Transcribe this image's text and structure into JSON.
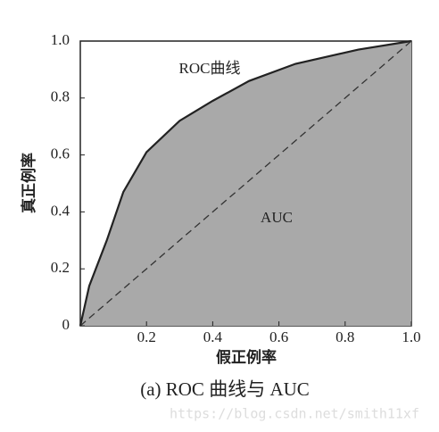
{
  "chart_data": {
    "type": "area",
    "caption": "(a) ROC 曲线与 AUC",
    "xlabel": "假正例率",
    "ylabel": "真正例率",
    "annotations": [
      "ROC曲线",
      "AUC"
    ],
    "watermark": "https://blog.csdn.net/smith11xf",
    "series": [
      {
        "name": "ROC曲线",
        "color": "#222222",
        "fill": "#a9a9a9",
        "x": [
          0,
          0.027,
          0.08,
          0.13,
          0.2,
          0.3,
          0.4,
          0.51,
          0.65,
          0.84,
          1
        ],
        "values": [
          0,
          0.14,
          0.3,
          0.47,
          0.61,
          0.72,
          0.79,
          0.86,
          0.92,
          0.97,
          1
        ]
      }
    ],
    "xlim": [
      0,
      1
    ],
    "ylim": [
      0,
      1
    ],
    "xticks": [
      0.2,
      0.4,
      0.6,
      0.8,
      {
        "value": 1,
        "label": "1.0"
      }
    ],
    "yticks": [
      0,
      0.2,
      0.4,
      0.6,
      0.8,
      {
        "value": 1,
        "label": "1.0"
      }
    ]
  }
}
